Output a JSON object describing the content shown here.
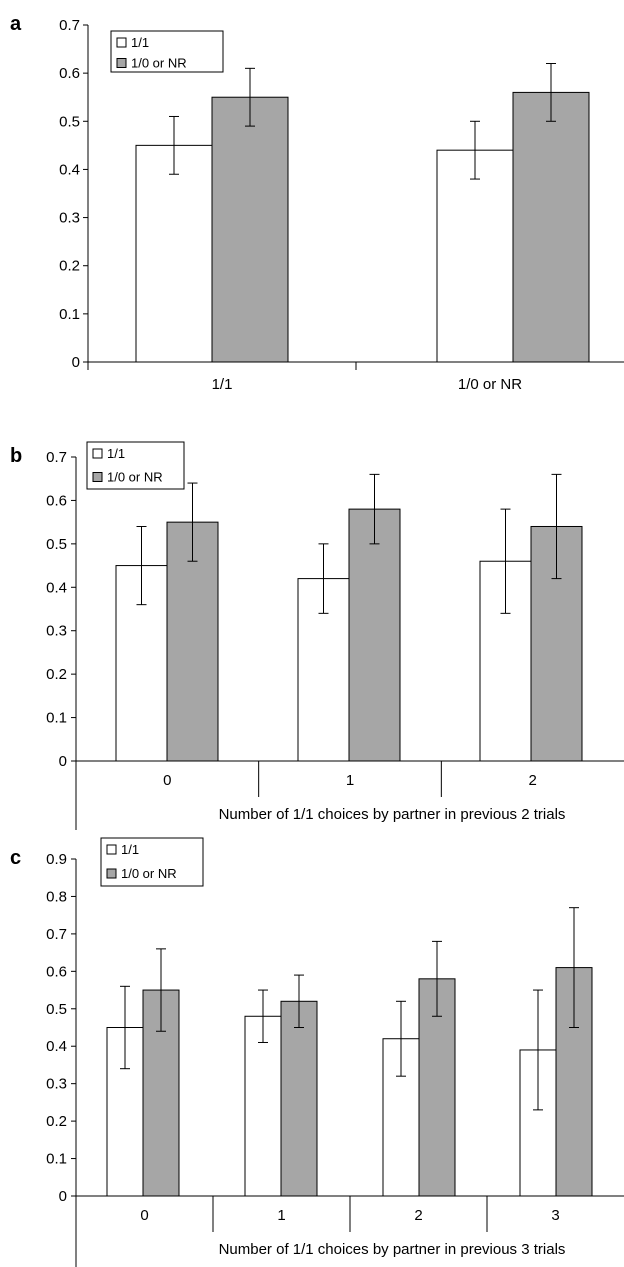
{
  "chart_data": [
    {
      "panel": "a",
      "type": "bar",
      "categories": [
        "1/1",
        "1/0 or NR"
      ],
      "series": [
        {
          "name": "1/1",
          "values": [
            0.45,
            0.44
          ],
          "err_low": [
            0.39,
            0.38
          ],
          "err_high": [
            0.51,
            0.5
          ]
        },
        {
          "name": "1/0 or NR",
          "values": [
            0.55,
            0.56
          ],
          "err_low": [
            0.49,
            0.5
          ],
          "err_high": [
            0.61,
            0.62
          ]
        }
      ],
      "yticks": [
        "0",
        "0.1",
        "0.2",
        "0.3",
        "0.4",
        "0.5",
        "0.6",
        "0.7"
      ],
      "ylim": [
        0,
        0.7
      ],
      "xlabel": "",
      "ylabel": "",
      "legend": "top-left",
      "grid": false,
      "colors": {
        "1/1": "#ffffff",
        "1/0 or NR": "#a6a6a6"
      }
    },
    {
      "panel": "b",
      "type": "bar",
      "categories": [
        "0",
        "1",
        "2"
      ],
      "series": [
        {
          "name": "1/1",
          "values": [
            0.45,
            0.42,
            0.46
          ],
          "err_low": [
            0.36,
            0.34,
            0.34
          ],
          "err_high": [
            0.54,
            0.5,
            0.58
          ]
        },
        {
          "name": "1/0 or NR",
          "values": [
            0.55,
            0.58,
            0.54
          ],
          "err_low": [
            0.46,
            0.5,
            0.42
          ],
          "err_high": [
            0.64,
            0.66,
            0.66
          ]
        }
      ],
      "yticks": [
        "0",
        "0.1",
        "0.2",
        "0.3",
        "0.4",
        "0.5",
        "0.6",
        "0.7"
      ],
      "ylim": [
        0,
        0.7
      ],
      "xlabel": "Number of 1/1 choices by partner in previous 2 trials",
      "ylabel": "",
      "legend": "top-left",
      "grid": false,
      "colors": {
        "1/1": "#ffffff",
        "1/0 or NR": "#a6a6a6"
      }
    },
    {
      "panel": "c",
      "type": "bar",
      "categories": [
        "0",
        "1",
        "2",
        "3"
      ],
      "series": [
        {
          "name": "1/1",
          "values": [
            0.45,
            0.48,
            0.42,
            0.39
          ],
          "err_low": [
            0.34,
            0.41,
            0.32,
            0.23
          ],
          "err_high": [
            0.56,
            0.55,
            0.52,
            0.55
          ]
        },
        {
          "name": "1/0 or NR",
          "values": [
            0.55,
            0.52,
            0.58,
            0.61
          ],
          "err_low": [
            0.44,
            0.45,
            0.48,
            0.45
          ],
          "err_high": [
            0.66,
            0.59,
            0.68,
            0.77
          ]
        }
      ],
      "yticks": [
        "0",
        "0.1",
        "0.2",
        "0.3",
        "0.4",
        "0.5",
        "0.6",
        "0.7",
        "0.8",
        "0.9"
      ],
      "ylim": [
        0,
        0.9
      ],
      "xlabel": "Number of 1/1 choices by partner in previous 3 trials",
      "ylabel": "",
      "legend": "top-left",
      "grid": false,
      "colors": {
        "1/1": "#ffffff",
        "1/0 or NR": "#a6a6a6"
      }
    }
  ]
}
